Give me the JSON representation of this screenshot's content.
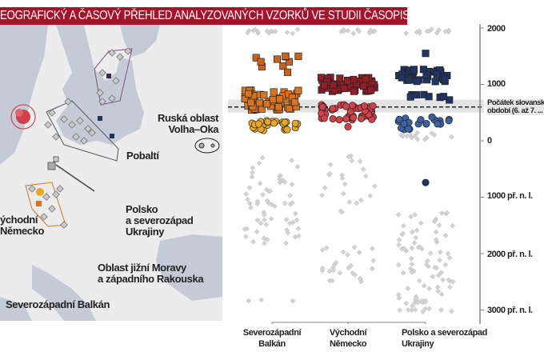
{
  "title": "EOGRAFICKÝ A ČASOVÝ PŘEHLED ANALYZOVANÝCH VZORKŮ VE STUDII ČASOPISU NATURE",
  "map": {
    "labels": {
      "volha_oka": "Ruská oblast\nVolha–Oka",
      "pobalti": "Pobaltí",
      "polsko": "Polsko\na severozápad\nUkrajiny",
      "vychodni_nemecko": "ýchodní\nNěmecko",
      "morava": "Oblast jižní Moravy\na západního Rakouska",
      "balkan": "Severozápadní Balkán"
    },
    "colors": {
      "sea": "#c5cbd6",
      "land": "#ececec",
      "balkan": "#d87a26",
      "nemecko": "#c8343f",
      "polsko": "#1f3560",
      "pobalti": "#8a4a8a"
    }
  },
  "chart_data": {
    "type": "scatter",
    "subtype": "strip plot (jittered)",
    "categories": [
      "Severozápadní\nBalkán",
      "Východní\nNěmecko",
      "Polsko a severozápad\nUkrajiny"
    ],
    "y_ticks": [
      {
        "value": 2000,
        "label": "2000"
      },
      {
        "value": 1000,
        "label": "1000"
      },
      {
        "value": 0,
        "label": "0"
      },
      {
        "value": -1000,
        "label": "1000 př. n. l."
      },
      {
        "value": -2000,
        "label": "2000 př. n. l."
      },
      {
        "value": -3000,
        "label": "3000 př. n. l."
      }
    ],
    "ylim": [
      -3200,
      2050
    ],
    "annotation": {
      "label": "Počátek slovanského\nobdobí (6. až 7. ...",
      "value": 600,
      "band": [
        500,
        730
      ]
    },
    "groups": [
      {
        "category": 0,
        "color": "#d3d3d3",
        "shape": "diamond",
        "range": [
          1900,
          1980
        ],
        "count": 14
      },
      {
        "category": 0,
        "color": "#c8621c",
        "shape": "square",
        "range": [
          1200,
          1560
        ],
        "count": 10
      },
      {
        "category": 0,
        "color": "#d8741e",
        "shape": "square",
        "range": [
          520,
          900
        ],
        "count": 60
      },
      {
        "category": 0,
        "color": "#e9a824",
        "shape": "circle",
        "range": [
          180,
          370
        ],
        "count": 26
      },
      {
        "category": 0,
        "color": "#d3d3d3",
        "shape": "diamond",
        "range": [
          -1830,
          -230
        ],
        "count": 60
      },
      {
        "category": 0,
        "color": "#d3d3d3",
        "shape": "diamond",
        "range": [
          -2850,
          -2700
        ],
        "count": 3
      },
      {
        "category": 1,
        "color": "#d3d3d3",
        "shape": "diamond",
        "range": [
          1900,
          1980
        ],
        "count": 12
      },
      {
        "category": 1,
        "color": "#8e1f26",
        "shape": "square",
        "range": [
          870,
          1130
        ],
        "count": 55
      },
      {
        "category": 1,
        "color": "#d2404a",
        "shape": "circle",
        "range": [
          370,
          640
        ],
        "count": 50
      },
      {
        "category": 1,
        "color": "#d2404a",
        "shape": "circle",
        "range": [
          250,
          250
        ],
        "count": 1
      },
      {
        "category": 1,
        "color": "#d3d3d3",
        "shape": "diamond",
        "range": [
          -1300,
          -240
        ],
        "count": 22
      },
      {
        "category": 1,
        "color": "#d3d3d3",
        "shape": "diamond",
        "range": [
          -2540,
          -1830
        ],
        "count": 26
      },
      {
        "category": 2,
        "color": "#d3d3d3",
        "shape": "diamond",
        "range": [
          1900,
          1980
        ],
        "count": 12
      },
      {
        "category": 2,
        "color": "#1f3560",
        "shape": "square",
        "range": [
          1550,
          1550
        ],
        "count": 1
      },
      {
        "category": 2,
        "color": "#1f3560",
        "shape": "square",
        "range": [
          1050,
          1270
        ],
        "count": 38
      },
      {
        "category": 2,
        "color": "#1f3560",
        "shape": "square",
        "range": [
          700,
          820
        ],
        "count": 8
      },
      {
        "category": 2,
        "color": "#3c62a3",
        "shape": "circle",
        "range": [
          180,
          430
        ],
        "count": 20
      },
      {
        "category": 2,
        "color": "#d3d3d3",
        "shape": "diamond",
        "range": [
          20,
          160
        ],
        "count": 14
      },
      {
        "category": 2,
        "color": "#1f3560",
        "shape": "circle",
        "range": [
          -740,
          -740
        ],
        "count": 1
      },
      {
        "category": 2,
        "color": "#d3d3d3",
        "shape": "diamond",
        "range": [
          -3030,
          -1220
        ],
        "count": 90
      }
    ]
  }
}
